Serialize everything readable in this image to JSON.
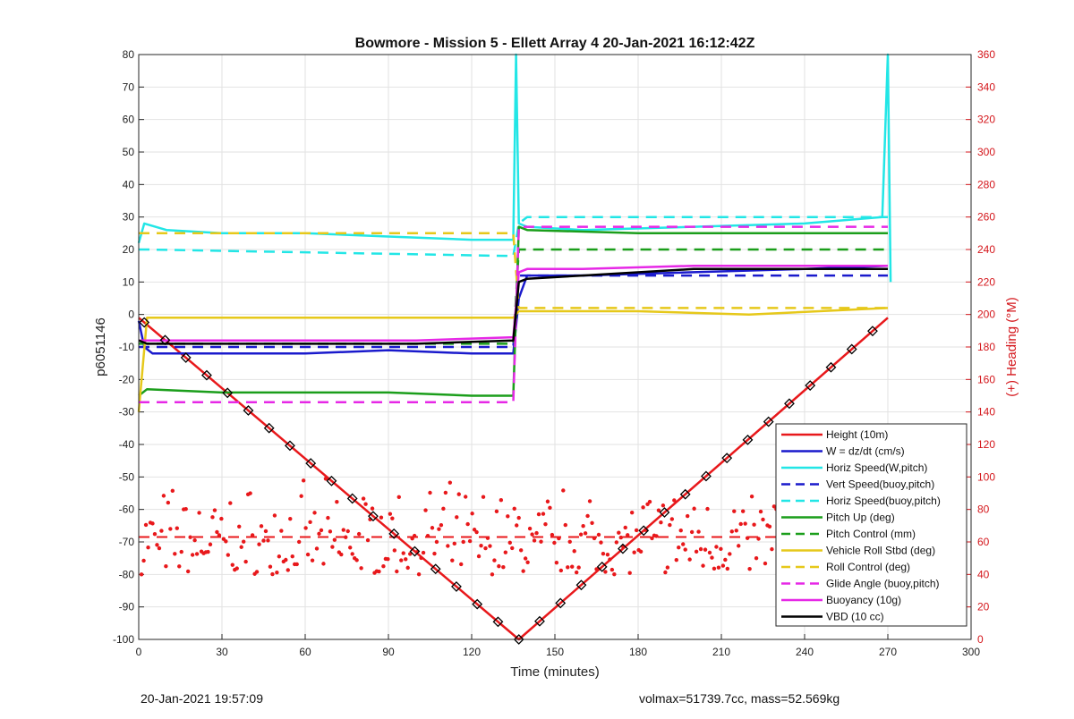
{
  "chart_data": {
    "type": "line",
    "title": "Bowmore - Mission 5 - Ellett Array 4 20-Jan-2021 16:12:42Z",
    "xlabel": "Time (minutes)",
    "ylabel": "p6051146",
    "y2label": "(+) Heading (°M)",
    "xlim": [
      0,
      300
    ],
    "ylim": [
      -100,
      80
    ],
    "y2lim": [
      0,
      360
    ],
    "xticks": [
      0,
      30,
      60,
      90,
      120,
      150,
      180,
      210,
      240,
      270,
      300
    ],
    "yticks": [
      -100,
      -90,
      -80,
      -70,
      -60,
      -50,
      -40,
      -30,
      -20,
      -10,
      0,
      10,
      20,
      30,
      40,
      50,
      60,
      70,
      80
    ],
    "y2ticks": [
      0,
      20,
      40,
      60,
      80,
      100,
      120,
      140,
      160,
      180,
      200,
      220,
      240,
      260,
      280,
      300,
      320,
      340,
      360
    ],
    "grid": true,
    "legend_position": "lower-right",
    "colors": {
      "red": "#e8181b",
      "blue": "#1a1acc",
      "cyan": "#22e6e6",
      "green": "#1b9e1b",
      "yellow": "#e6c81a",
      "magenta": "#e628e6",
      "black": "#000000",
      "right_axis": "#d4161b"
    },
    "series": [
      {
        "name": "Height (10m)",
        "style": "solid",
        "color": "red",
        "x": [
          0,
          137,
          270
        ],
        "y": [
          -1,
          -100,
          -1
        ]
      },
      {
        "name": "W = dz/dt (cm/s)",
        "style": "solid",
        "color": "blue",
        "x": [
          0,
          2,
          5,
          10,
          30,
          60,
          90,
          120,
          135,
          137,
          140,
          160,
          200,
          240,
          270
        ],
        "y": [
          -2,
          -10,
          -12,
          -12,
          -12,
          -12,
          -11,
          -12,
          -12,
          5,
          12,
          12,
          13,
          14,
          15
        ]
      },
      {
        "name": "Horiz Speed(W,pitch)",
        "style": "solid",
        "color": "cyan",
        "x": [
          0,
          2,
          10,
          30,
          60,
          90,
          120,
          135,
          136,
          137,
          140,
          160,
          200,
          240,
          268,
          270,
          271
        ],
        "y": [
          22,
          28,
          26,
          25,
          25,
          24,
          23,
          23,
          80,
          28,
          27,
          26,
          27,
          28,
          30,
          80,
          10
        ]
      },
      {
        "name": "Vert Speed(buoy,pitch)",
        "style": "dashed",
        "color": "blue",
        "x": [
          0,
          3,
          135,
          137,
          140,
          270
        ],
        "y": [
          -10,
          -10,
          -10,
          12,
          12,
          12
        ]
      },
      {
        "name": "Horiz Speed(buoy,pitch)",
        "style": "dashed",
        "color": "cyan",
        "x": [
          0,
          3,
          135,
          137,
          140,
          270
        ],
        "y": [
          20,
          20,
          18,
          28,
          30,
          30
        ]
      },
      {
        "name": "Pitch Up (deg)",
        "style": "solid",
        "color": "green",
        "x": [
          0,
          3,
          30,
          60,
          90,
          120,
          135,
          137,
          140,
          180,
          220,
          270
        ],
        "y": [
          -25,
          -23,
          -24,
          -24,
          -24,
          -25,
          -25,
          27,
          26,
          25,
          25,
          25
        ]
      },
      {
        "name": "Pitch Control (mm)",
        "style": "dashed",
        "color": "green",
        "x": [
          0,
          135,
          137,
          140,
          270
        ],
        "y": [
          -9,
          -9,
          20,
          20,
          20
        ]
      },
      {
        "name": "Vehicle Roll Stbd (deg)",
        "style": "solid",
        "color": "yellow",
        "x": [
          0,
          3,
          30,
          60,
          90,
          120,
          135,
          137,
          140,
          180,
          220,
          270
        ],
        "y": [
          -30,
          -1,
          -1,
          -1,
          -1,
          -1,
          -1,
          1,
          1,
          1,
          0,
          2
        ]
      },
      {
        "name": "Roll Control (deg)",
        "style": "dashed",
        "color": "yellow",
        "x": [
          0,
          3,
          135,
          137,
          140,
          270
        ],
        "y": [
          25,
          25,
          25,
          2,
          2,
          2
        ]
      },
      {
        "name": "Glide Angle (buoy,pitch)",
        "style": "dashed",
        "color": "magenta",
        "x": [
          0,
          3,
          135,
          137,
          140,
          270
        ],
        "y": [
          -27,
          -27,
          -27,
          27,
          27,
          27
        ]
      },
      {
        "name": "Buoyancy (10g)",
        "style": "solid",
        "color": "magenta",
        "x": [
          0,
          3,
          60,
          100,
          135,
          137,
          140,
          160,
          200,
          240,
          270
        ],
        "y": [
          -8,
          -8,
          -8,
          -8,
          -7,
          13,
          14,
          14,
          15,
          15,
          15
        ]
      },
      {
        "name": "VBD (10 cc)",
        "style": "solid",
        "color": "black",
        "x": [
          0,
          3,
          60,
          100,
          135,
          137,
          140,
          160,
          200,
          240,
          270
        ],
        "y": [
          -8,
          -9,
          -9,
          -9,
          -8,
          10,
          11,
          12,
          14,
          14,
          14
        ]
      }
    ],
    "heading_dashed": {
      "color": "red",
      "x": [
        0,
        270
      ],
      "y2": [
        63,
        63
      ]
    },
    "heading_points_y2_range": [
      40,
      100
    ]
  },
  "footer": {
    "left": "20-Jan-2021 19:57:09",
    "right": "volmax=51739.7cc, mass=52.569kg"
  }
}
